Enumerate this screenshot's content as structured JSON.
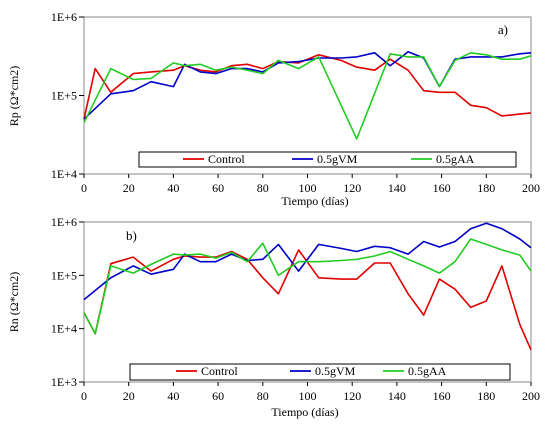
{
  "colors": {
    "Control": "#e00000",
    "0.5gVM": "#0000c8",
    "0.5gAA": "#22cc22"
  },
  "chart_data": [
    {
      "type": "line",
      "panel_label": "a)",
      "xlabel": "Tiempo (días)",
      "ylabel": "Rp (Ω*cm2)",
      "xlim": [
        0,
        200
      ],
      "ylim": [
        10000,
        1000000
      ],
      "yscale": "log",
      "grid": false,
      "xticks": [
        "0",
        "20",
        "40",
        "60",
        "80",
        "100",
        "120",
        "140",
        "160",
        "180",
        "200"
      ],
      "yticks": [
        "1E+4",
        "1E+5",
        "1E+6"
      ],
      "legend": "bottom",
      "series": [
        {
          "name": "Control",
          "x": [
            0,
            5,
            12,
            22,
            30,
            40,
            45,
            52,
            59,
            66,
            73,
            80,
            87,
            96,
            105,
            115,
            122,
            130,
            137,
            145,
            152,
            159,
            166,
            173,
            180,
            187,
            195,
            200
          ],
          "y": [
            50000,
            220000,
            110000,
            190000,
            200000,
            210000,
            240000,
            210000,
            200000,
            240000,
            250000,
            220000,
            270000,
            260000,
            330000,
            280000,
            230000,
            210000,
            290000,
            210000,
            115000,
            110000,
            110000,
            75000,
            70000,
            55000,
            58000,
            60000
          ]
        },
        {
          "name": "0.5gVM",
          "x": [
            0,
            12,
            22,
            30,
            40,
            45,
            52,
            59,
            66,
            73,
            80,
            87,
            96,
            105,
            115,
            122,
            130,
            137,
            145,
            152,
            159,
            166,
            173,
            180,
            187,
            195,
            200
          ],
          "y": [
            50000,
            105000,
            115000,
            150000,
            130000,
            250000,
            200000,
            190000,
            220000,
            220000,
            200000,
            260000,
            270000,
            300000,
            300000,
            310000,
            350000,
            240000,
            360000,
            300000,
            130000,
            290000,
            310000,
            310000,
            310000,
            340000,
            350000
          ]
        },
        {
          "name": "0.5gAA",
          "x": [
            0,
            12,
            22,
            30,
            40,
            45,
            52,
            59,
            66,
            73,
            80,
            87,
            96,
            105,
            122,
            137,
            145,
            152,
            159,
            166,
            173,
            180,
            187,
            195,
            200
          ],
          "y": [
            45000,
            220000,
            160000,
            165000,
            260000,
            240000,
            250000,
            210000,
            230000,
            210000,
            190000,
            280000,
            220000,
            310000,
            28000,
            340000,
            310000,
            310000,
            130000,
            280000,
            350000,
            330000,
            290000,
            290000,
            320000
          ]
        }
      ]
    },
    {
      "type": "line",
      "panel_label": "b)",
      "xlabel": "Tiempo (días)",
      "ylabel": "Rn (Ω*cm2)",
      "xlim": [
        0,
        200
      ],
      "ylim": [
        1000,
        1000000
      ],
      "yscale": "log",
      "grid": false,
      "xticks": [
        "0",
        "20",
        "40",
        "60",
        "80",
        "100",
        "120",
        "140",
        "160",
        "180",
        "200"
      ],
      "yticks": [
        "1E+3",
        "1E+4",
        "1E+5",
        "1E+6"
      ],
      "legend": "bottom",
      "series": [
        {
          "name": "Control",
          "x": [
            0,
            5,
            12,
            22,
            30,
            40,
            45,
            52,
            59,
            66,
            73,
            80,
            87,
            96,
            105,
            115,
            122,
            130,
            137,
            145,
            152,
            159,
            166,
            173,
            180,
            187,
            195,
            200
          ],
          "y": [
            20000,
            8000,
            165000,
            220000,
            120000,
            200000,
            230000,
            220000,
            220000,
            280000,
            200000,
            90000,
            45000,
            300000,
            90000,
            85000,
            85000,
            170000,
            170000,
            45000,
            18000,
            85000,
            55000,
            25000,
            33000,
            150000,
            12000,
            4000
          ]
        },
        {
          "name": "0.5gVM",
          "x": [
            0,
            12,
            22,
            30,
            40,
            45,
            52,
            59,
            66,
            73,
            80,
            87,
            96,
            105,
            115,
            122,
            130,
            137,
            145,
            152,
            159,
            166,
            173,
            180,
            187,
            195,
            200
          ],
          "y": [
            35000,
            90000,
            150000,
            105000,
            130000,
            250000,
            180000,
            180000,
            250000,
            190000,
            200000,
            380000,
            120000,
            380000,
            320000,
            280000,
            350000,
            330000,
            250000,
            430000,
            340000,
            430000,
            750000,
            950000,
            750000,
            480000,
            330000
          ]
        },
        {
          "name": "0.5gAA",
          "x": [
            0,
            5,
            12,
            22,
            30,
            40,
            45,
            52,
            59,
            66,
            73,
            80,
            87,
            96,
            105,
            115,
            122,
            130,
            137,
            145,
            152,
            159,
            166,
            173,
            180,
            187,
            195,
            200
          ],
          "y": [
            20000,
            8000,
            150000,
            110000,
            160000,
            250000,
            240000,
            250000,
            210000,
            270000,
            180000,
            400000,
            100000,
            180000,
            180000,
            190000,
            200000,
            230000,
            280000,
            200000,
            150000,
            110000,
            180000,
            480000,
            380000,
            300000,
            240000,
            120000
          ]
        }
      ]
    }
  ]
}
